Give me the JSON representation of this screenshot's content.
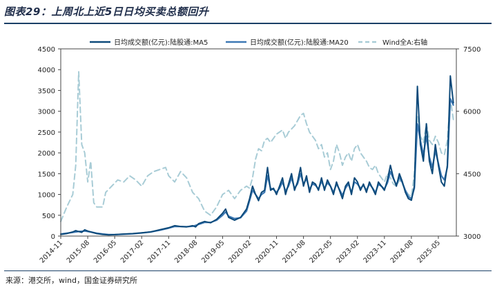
{
  "header": {
    "title": "图表29：上周北上近5日日均买卖总额回升"
  },
  "footer": {
    "source": "来源：港交所，wind，国金证券研究所"
  },
  "colors": {
    "ma5": "#0d4a7a",
    "ma20": "#3c78b4",
    "wind": "#a8ccd6",
    "axis": "#444444"
  },
  "chart_data": {
    "type": "line",
    "title": "上周北上近5日日均买卖总额回升",
    "legend_position": "top-center",
    "x_tick_labels": [
      "2014-11",
      "2015-08",
      "2016-05",
      "2017-02",
      "2017-11",
      "2018-08",
      "2019-05",
      "2020-02",
      "2020-11",
      "2021-08",
      "2022-05",
      "2023-02",
      "2023-11",
      "2024-08",
      "2025-05"
    ],
    "x_tick_positions": [
      0,
      9,
      18,
      27,
      36,
      45,
      54,
      63,
      72,
      81,
      90,
      99,
      108,
      117,
      126
    ],
    "x_range": [
      0,
      132
    ],
    "y_left": {
      "min": 0,
      "max": 4500,
      "ticks": [
        0,
        500,
        1000,
        1500,
        2000,
        2500,
        3000,
        3500,
        4000,
        4500
      ]
    },
    "y_right": {
      "min": 3000,
      "max": 7500,
      "ticks": [
        3000,
        4500,
        6000,
        7500
      ]
    },
    "series": [
      {
        "name": "日均成交额(亿元):陆股通:MA5",
        "axis": "left",
        "style": "solid",
        "points": [
          [
            0,
            40
          ],
          [
            2,
            60
          ],
          [
            4,
            100
          ],
          [
            5,
            130
          ],
          [
            6,
            110
          ],
          [
            7,
            90
          ],
          [
            8,
            150
          ],
          [
            9,
            120
          ],
          [
            10,
            100
          ],
          [
            12,
            60
          ],
          [
            14,
            40
          ],
          [
            16,
            30
          ],
          [
            18,
            35
          ],
          [
            21,
            50
          ],
          [
            24,
            60
          ],
          [
            27,
            80
          ],
          [
            30,
            100
          ],
          [
            33,
            150
          ],
          [
            36,
            200
          ],
          [
            38,
            250
          ],
          [
            40,
            230
          ],
          [
            42,
            220
          ],
          [
            44,
            250
          ],
          [
            45,
            220
          ],
          [
            46,
            300
          ],
          [
            48,
            350
          ],
          [
            50,
            320
          ],
          [
            52,
            400
          ],
          [
            54,
            550
          ],
          [
            55,
            650
          ],
          [
            56,
            450
          ],
          [
            58,
            380
          ],
          [
            60,
            450
          ],
          [
            62,
            650
          ],
          [
            63,
            900
          ],
          [
            64,
            1200
          ],
          [
            65,
            1000
          ],
          [
            66,
            850
          ],
          [
            67,
            1050
          ],
          [
            68,
            1100
          ],
          [
            69,
            1650
          ],
          [
            70,
            1100
          ],
          [
            71,
            1150
          ],
          [
            72,
            1000
          ],
          [
            73,
            1200
          ],
          [
            74,
            1400
          ],
          [
            75,
            1000
          ],
          [
            76,
            1250
          ],
          [
            77,
            1500
          ],
          [
            78,
            1100
          ],
          [
            79,
            1300
          ],
          [
            80,
            1650
          ],
          [
            81,
            1200
          ],
          [
            82,
            1450
          ],
          [
            83,
            1050
          ],
          [
            84,
            1300
          ],
          [
            85,
            1250
          ],
          [
            86,
            1100
          ],
          [
            87,
            1400
          ],
          [
            88,
            1100
          ],
          [
            89,
            1350
          ],
          [
            90,
            1200
          ],
          [
            91,
            1000
          ],
          [
            92,
            1300
          ],
          [
            93,
            1100
          ],
          [
            94,
            900
          ],
          [
            95,
            1200
          ],
          [
            96,
            1300
          ],
          [
            97,
            1000
          ],
          [
            98,
            1400
          ],
          [
            99,
            1300
          ],
          [
            100,
            1100
          ],
          [
            101,
            1250
          ],
          [
            102,
            1050
          ],
          [
            103,
            1300
          ],
          [
            104,
            1150
          ],
          [
            105,
            1000
          ],
          [
            106,
            1300
          ],
          [
            107,
            1200
          ],
          [
            108,
            1100
          ],
          [
            109,
            1350
          ],
          [
            110,
            1700
          ],
          [
            111,
            1400
          ],
          [
            112,
            1200
          ],
          [
            113,
            1500
          ],
          [
            114,
            1300
          ],
          [
            115,
            1050
          ],
          [
            116,
            900
          ],
          [
            117,
            860
          ],
          [
            118,
            1200
          ],
          [
            119,
            3600
          ],
          [
            120,
            2200
          ],
          [
            121,
            1800
          ],
          [
            122,
            2700
          ],
          [
            123,
            1800
          ],
          [
            124,
            1500
          ],
          [
            125,
            2200
          ],
          [
            126,
            1700
          ],
          [
            127,
            1300
          ],
          [
            128,
            1200
          ],
          [
            129,
            1700
          ],
          [
            130,
            3850
          ],
          [
            131,
            3200
          ]
        ]
      },
      {
        "name": "日均成交额(亿元):陆股通:MA20",
        "axis": "left",
        "style": "solid",
        "points": [
          [
            0,
            50
          ],
          [
            2,
            70
          ],
          [
            4,
            90
          ],
          [
            6,
            110
          ],
          [
            8,
            120
          ],
          [
            10,
            100
          ],
          [
            12,
            70
          ],
          [
            14,
            50
          ],
          [
            16,
            35
          ],
          [
            18,
            35
          ],
          [
            21,
            45
          ],
          [
            24,
            55
          ],
          [
            27,
            75
          ],
          [
            30,
            100
          ],
          [
            33,
            140
          ],
          [
            36,
            190
          ],
          [
            38,
            230
          ],
          [
            40,
            230
          ],
          [
            42,
            225
          ],
          [
            44,
            235
          ],
          [
            46,
            280
          ],
          [
            48,
            330
          ],
          [
            50,
            330
          ],
          [
            52,
            380
          ],
          [
            54,
            500
          ],
          [
            55,
            580
          ],
          [
            56,
            480
          ],
          [
            58,
            420
          ],
          [
            60,
            440
          ],
          [
            62,
            600
          ],
          [
            63,
            850
          ],
          [
            64,
            1100
          ],
          [
            65,
            1000
          ],
          [
            66,
            900
          ],
          [
            67,
            1000
          ],
          [
            68,
            1050
          ],
          [
            69,
            1450
          ],
          [
            70,
            1150
          ],
          [
            71,
            1120
          ],
          [
            72,
            1050
          ],
          [
            73,
            1150
          ],
          [
            74,
            1300
          ],
          [
            75,
            1080
          ],
          [
            76,
            1200
          ],
          [
            77,
            1400
          ],
          [
            78,
            1150
          ],
          [
            79,
            1250
          ],
          [
            80,
            1500
          ],
          [
            81,
            1250
          ],
          [
            82,
            1380
          ],
          [
            83,
            1120
          ],
          [
            84,
            1250
          ],
          [
            85,
            1220
          ],
          [
            86,
            1130
          ],
          [
            87,
            1320
          ],
          [
            88,
            1150
          ],
          [
            89,
            1280
          ],
          [
            90,
            1200
          ],
          [
            91,
            1050
          ],
          [
            92,
            1250
          ],
          [
            93,
            1120
          ],
          [
            94,
            980
          ],
          [
            95,
            1150
          ],
          [
            96,
            1250
          ],
          [
            97,
            1050
          ],
          [
            98,
            1300
          ],
          [
            99,
            1250
          ],
          [
            100,
            1150
          ],
          [
            101,
            1220
          ],
          [
            102,
            1100
          ],
          [
            103,
            1250
          ],
          [
            104,
            1160
          ],
          [
            105,
            1050
          ],
          [
            106,
            1240
          ],
          [
            107,
            1200
          ],
          [
            108,
            1130
          ],
          [
            109,
            1280
          ],
          [
            110,
            1550
          ],
          [
            111,
            1380
          ],
          [
            112,
            1230
          ],
          [
            113,
            1420
          ],
          [
            114,
            1280
          ],
          [
            115,
            1100
          ],
          [
            116,
            950
          ],
          [
            117,
            900
          ],
          [
            118,
            1150
          ],
          [
            119,
            2700
          ],
          [
            120,
            2300
          ],
          [
            121,
            1950
          ],
          [
            122,
            2400
          ],
          [
            123,
            1900
          ],
          [
            124,
            1650
          ],
          [
            125,
            2050
          ],
          [
            126,
            1750
          ],
          [
            127,
            1450
          ],
          [
            128,
            1350
          ],
          [
            129,
            1650
          ],
          [
            130,
            3300
          ],
          [
            131,
            3150
          ]
        ]
      },
      {
        "name": "Wind全A:右轴",
        "axis": "right",
        "style": "dashed",
        "points": [
          [
            0,
            3350
          ],
          [
            2,
            3700
          ],
          [
            4,
            4000
          ],
          [
            5,
            4700
          ],
          [
            6,
            6950
          ],
          [
            7,
            5200
          ],
          [
            8,
            5000
          ],
          [
            9,
            4300
          ],
          [
            10,
            4800
          ],
          [
            11,
            3800
          ],
          [
            12,
            3700
          ],
          [
            14,
            3700
          ],
          [
            15,
            4050
          ],
          [
            17,
            4200
          ],
          [
            19,
            4350
          ],
          [
            21,
            4300
          ],
          [
            23,
            4450
          ],
          [
            25,
            4350
          ],
          [
            27,
            4200
          ],
          [
            29,
            4450
          ],
          [
            31,
            4550
          ],
          [
            33,
            4600
          ],
          [
            35,
            4650
          ],
          [
            36,
            4450
          ],
          [
            38,
            4300
          ],
          [
            40,
            4550
          ],
          [
            42,
            4400
          ],
          [
            44,
            4050
          ],
          [
            46,
            3900
          ],
          [
            48,
            3600
          ],
          [
            50,
            3500
          ],
          [
            52,
            3700
          ],
          [
            54,
            4000
          ],
          [
            56,
            4100
          ],
          [
            58,
            3900
          ],
          [
            60,
            4100
          ],
          [
            62,
            4200
          ],
          [
            63,
            4150
          ],
          [
            64,
            4400
          ],
          [
            65,
            4850
          ],
          [
            66,
            5100
          ],
          [
            67,
            5050
          ],
          [
            68,
            5300
          ],
          [
            69,
            5350
          ],
          [
            70,
            5250
          ],
          [
            72,
            5450
          ],
          [
            74,
            5550
          ],
          [
            75,
            5350
          ],
          [
            76,
            5500
          ],
          [
            78,
            5650
          ],
          [
            80,
            5900
          ],
          [
            81,
            5950
          ],
          [
            82,
            5700
          ],
          [
            83,
            5500
          ],
          [
            84,
            5400
          ],
          [
            85,
            5300
          ],
          [
            86,
            5100
          ],
          [
            87,
            5200
          ],
          [
            88,
            4900
          ],
          [
            89,
            5000
          ],
          [
            90,
            4600
          ],
          [
            91,
            4800
          ],
          [
            92,
            5200
          ],
          [
            93,
            5000
          ],
          [
            94,
            4700
          ],
          [
            95,
            4900
          ],
          [
            96,
            5000
          ],
          [
            97,
            4800
          ],
          [
            98,
            5100
          ],
          [
            99,
            5200
          ],
          [
            100,
            5000
          ],
          [
            101,
            4900
          ],
          [
            102,
            4800
          ],
          [
            103,
            4650
          ],
          [
            104,
            4600
          ],
          [
            105,
            4700
          ],
          [
            106,
            4500
          ],
          [
            107,
            4400
          ],
          [
            108,
            4300
          ],
          [
            109,
            4500
          ],
          [
            110,
            4400
          ],
          [
            111,
            4250
          ],
          [
            112,
            4200
          ],
          [
            113,
            4350
          ],
          [
            114,
            4250
          ],
          [
            115,
            4100
          ],
          [
            116,
            4000
          ],
          [
            117,
            3950
          ],
          [
            118,
            4500
          ],
          [
            119,
            5900
          ],
          [
            120,
            5400
          ],
          [
            121,
            5250
          ],
          [
            122,
            5700
          ],
          [
            123,
            5300
          ],
          [
            124,
            5200
          ],
          [
            125,
            5400
          ],
          [
            126,
            5250
          ],
          [
            127,
            5000
          ],
          [
            128,
            4950
          ],
          [
            129,
            5300
          ],
          [
            130,
            6300
          ],
          [
            131,
            5800
          ]
        ]
      }
    ]
  }
}
